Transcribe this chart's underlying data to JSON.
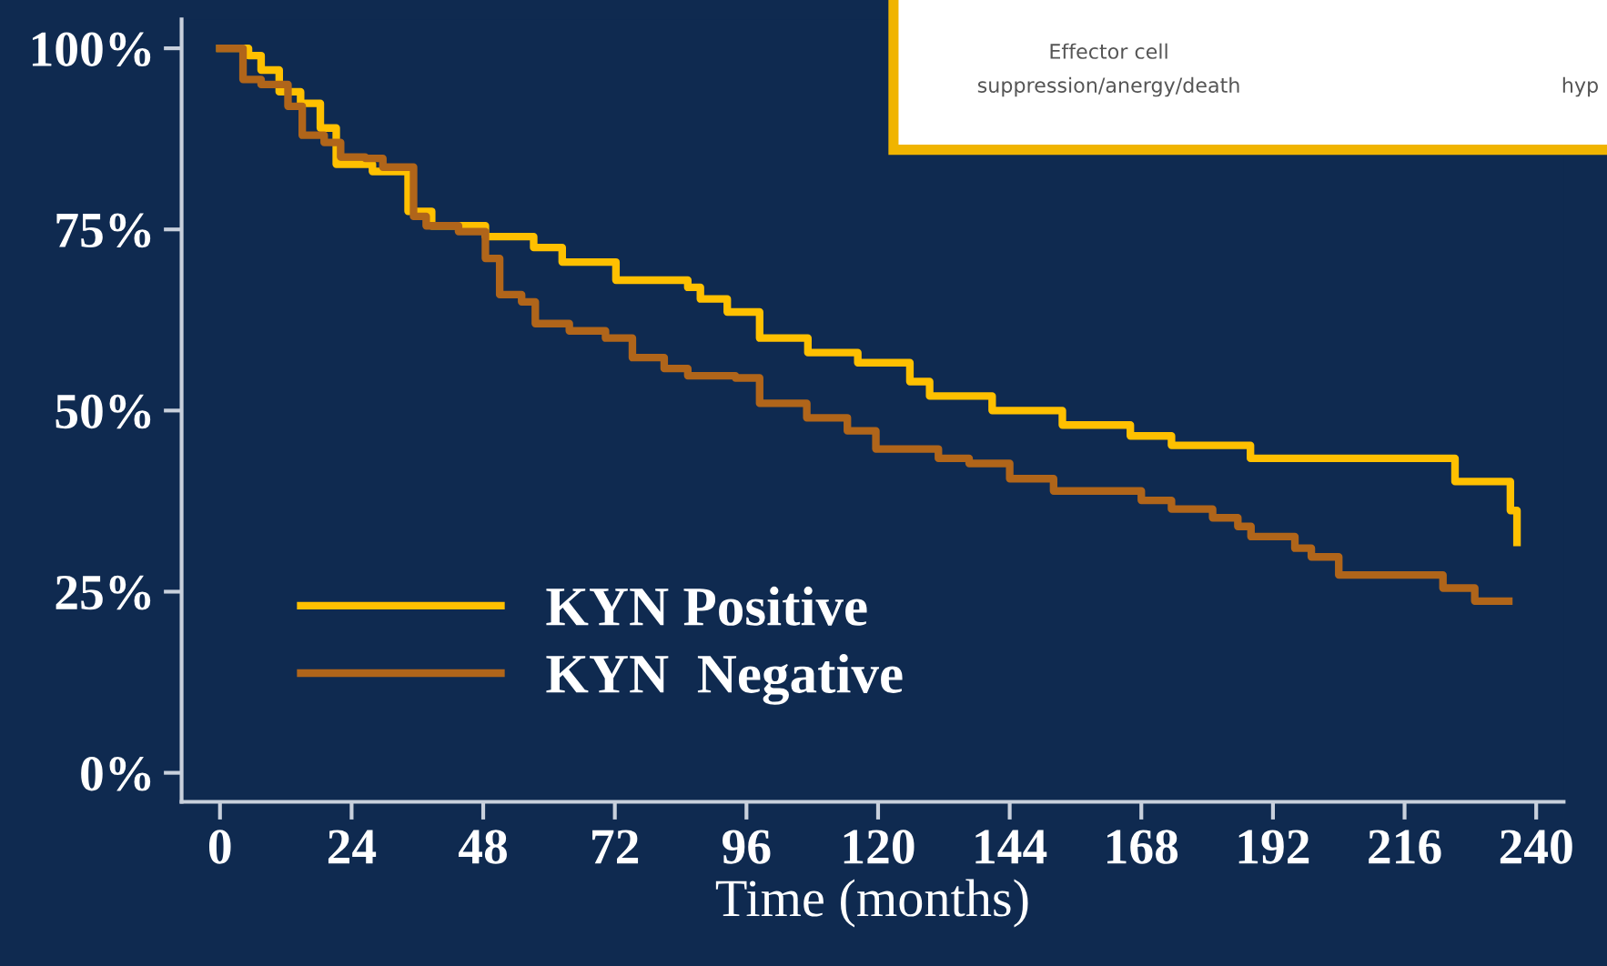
{
  "chart_data": {
    "type": "step",
    "xlabel": "Time (months)",
    "xlim": [
      -7,
      245
    ],
    "xticks": [
      0,
      24,
      48,
      72,
      96,
      120,
      144,
      168,
      192,
      216,
      240
    ],
    "ylim": [
      -4,
      104
    ],
    "yticks": [
      {
        "value": 0,
        "label": "0%"
      },
      {
        "value": 25,
        "label": "25%"
      },
      {
        "value": 50,
        "label": "50%"
      },
      {
        "value": 75,
        "label": "75%"
      },
      {
        "value": 100,
        "label": "100%"
      }
    ],
    "grid": false,
    "legend": "bottom left",
    "annotations": [
      "Effector cell",
      "suppression/anergy/death",
      "hyp"
    ],
    "series": [
      {
        "name": "KYN Positive",
        "color": "#ffc000",
        "x": [
          0,
          5.2,
          7.5,
          10.8,
          14.7,
          18.3,
          21.2,
          27.8,
          34.3,
          38.6,
          48.4,
          57.2,
          62.4,
          72.2,
          85.3,
          87.6,
          92.5,
          98.4,
          107.2,
          116.3,
          125.8,
          129.4,
          140.8,
          153.6,
          166,
          173.5,
          187.9,
          225.2,
          235.3,
          236.5
        ],
        "values": [
          100,
          99,
          97,
          94,
          92.4,
          89,
          84,
          83,
          77.5,
          75.5,
          74,
          72.5,
          70.5,
          68,
          67,
          65.4,
          63.6,
          60,
          58,
          56.6,
          54,
          52,
          50,
          48,
          46.5,
          45.2,
          43.4,
          40.2,
          36.2,
          31.8
        ]
      },
      {
        "name": "KYN  Negative",
        "color": "#b0651a",
        "x": [
          0,
          4.2,
          7.5,
          12.4,
          15,
          19,
          22,
          26.5,
          29.7,
          35.3,
          37.6,
          43.5,
          48.4,
          51,
          55,
          57.5,
          63.7,
          70.3,
          75.2,
          81,
          85.3,
          94,
          98.4,
          107,
          114.4,
          119.6,
          131,
          136.6,
          144,
          152,
          168,
          173.5,
          181,
          185.6,
          188,
          196,
          199,
          204,
          223,
          228.8,
          235
        ],
        "values": [
          100,
          95.7,
          95,
          92,
          88,
          87,
          85,
          84.8,
          83.6,
          76.8,
          75.5,
          74.7,
          71,
          66,
          65,
          62,
          61,
          60,
          57.3,
          55.8,
          54.8,
          54.5,
          51,
          49,
          47.2,
          44.7,
          43.4,
          42.7,
          40.6,
          38.9,
          37.6,
          36.4,
          35.2,
          34,
          32.6,
          31,
          29.8,
          27.3,
          25.5,
          23.7,
          23.7
        ]
      }
    ]
  }
}
